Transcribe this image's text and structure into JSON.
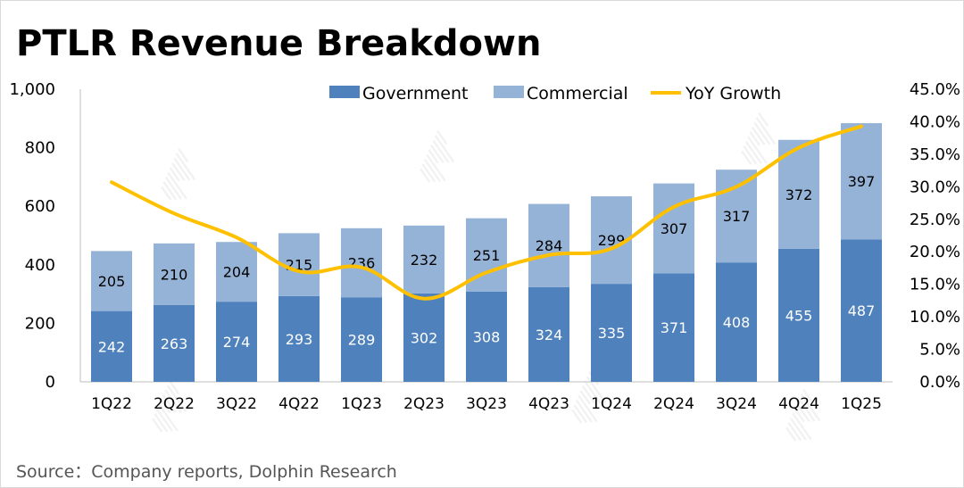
{
  "title": "PTLR Revenue Breakdown",
  "source": "Source：Company reports, Dolphin Research",
  "colors": {
    "government": "#4f81bd",
    "commercial": "#95b3d7",
    "growth": "#ffc000"
  },
  "chart_data": {
    "type": "bar",
    "stacked": true,
    "categories": [
      "1Q22",
      "2Q22",
      "3Q22",
      "4Q22",
      "1Q23",
      "2Q23",
      "3Q23",
      "4Q23",
      "1Q24",
      "2Q24",
      "3Q24",
      "4Q24",
      "1Q25"
    ],
    "series": [
      {
        "name": "Government",
        "values": [
          242,
          263,
          274,
          293,
          289,
          302,
          308,
          324,
          335,
          371,
          408,
          455,
          487
        ]
      },
      {
        "name": "Commercial",
        "values": [
          205,
          210,
          204,
          215,
          236,
          232,
          251,
          284,
          299,
          307,
          317,
          372,
          397
        ]
      }
    ],
    "line_series": {
      "name": "YoY Growth",
      "axis": "right",
      "values": [
        0.307,
        0.259,
        0.222,
        0.17,
        0.176,
        0.128,
        0.168,
        0.195,
        0.205,
        0.269,
        0.3,
        0.36,
        0.393
      ]
    },
    "ylim": [
      0,
      1000
    ],
    "yticks": [
      "0",
      "200",
      "400",
      "600",
      "800",
      "1,000"
    ],
    "y2lim": [
      0,
      0.45
    ],
    "y2ticks": [
      "0.0%",
      "5.0%",
      "10.0%",
      "15.0%",
      "20.0%",
      "25.0%",
      "30.0%",
      "35.0%",
      "40.0%",
      "45.0%"
    ],
    "legend": "top"
  }
}
